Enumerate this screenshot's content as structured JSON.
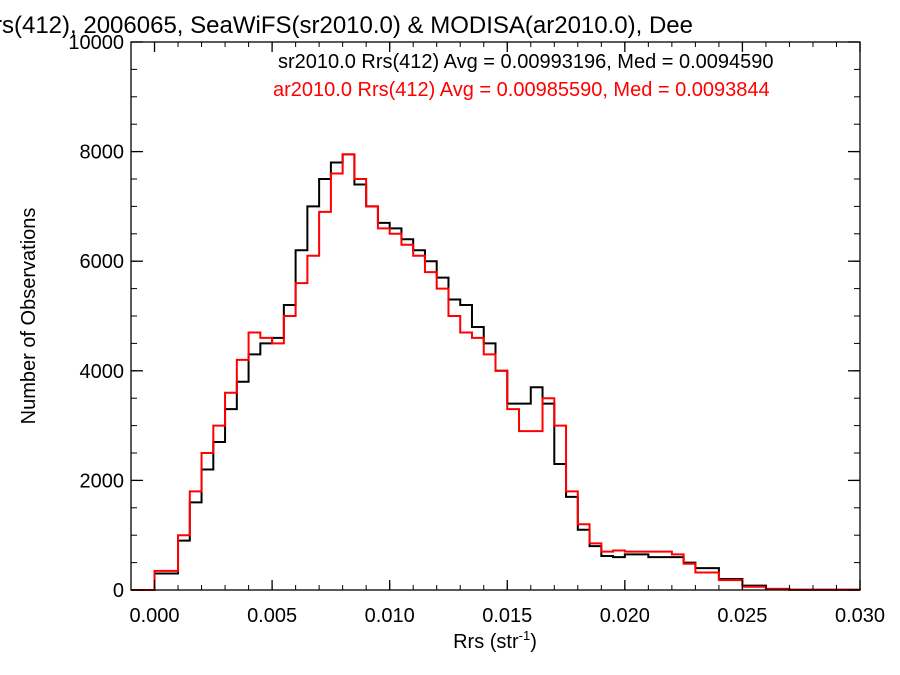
{
  "chart_data": {
    "type": "line",
    "step": true,
    "title": "rs(412), 2006065, SeaWiFS(sr2010.0) & MODISA(ar2010.0), Dee",
    "xlabel": "Rrs (str",
    "xlabel_sup": "-1",
    "xlabel_close": ")",
    "ylabel": "Number of Observations",
    "xlim": [
      -0.001,
      0.03
    ],
    "ylim": [
      0,
      10000
    ],
    "xticks": [
      0.0,
      0.005,
      0.01,
      0.015,
      0.02,
      0.025,
      0.03
    ],
    "xtick_labels": [
      "0.000",
      "0.005",
      "0.010",
      "0.015",
      "0.020",
      "0.025",
      "0.030"
    ],
    "yticks": [
      0,
      2000,
      4000,
      6000,
      8000,
      10000
    ],
    "ytick_labels": [
      "0",
      "2000",
      "4000",
      "6000",
      "8000",
      "10000"
    ],
    "legend": [
      {
        "text": "sr2010.0 Rrs(412) Avg = 0.00993196, Med = 0.0094590",
        "color": "#000000"
      },
      {
        "text": "ar2010.0 Rrs(412) Avg = 0.00985590, Med = 0.0093844",
        "color": "#ff0000"
      }
    ],
    "series": [
      {
        "color": "#000000",
        "x": [
          -0.001,
          0.0,
          0.001,
          0.0015,
          0.002,
          0.0025,
          0.003,
          0.0035,
          0.004,
          0.0045,
          0.005,
          0.0055,
          0.006,
          0.0065,
          0.007,
          0.0075,
          0.008,
          0.0085,
          0.009,
          0.0095,
          0.01,
          0.0105,
          0.011,
          0.0115,
          0.012,
          0.0125,
          0.013,
          0.0135,
          0.014,
          0.0145,
          0.015,
          0.0155,
          0.016,
          0.0165,
          0.017,
          0.0175,
          0.018,
          0.0185,
          0.019,
          0.0195,
          0.02,
          0.021,
          0.022,
          0.0225,
          0.023,
          0.024,
          0.025,
          0.026,
          0.027,
          0.03
        ],
        "y": [
          0,
          300,
          900,
          1600,
          2200,
          2700,
          3300,
          3800,
          4300,
          4500,
          4600,
          5200,
          6200,
          7000,
          7500,
          7800,
          7950,
          7400,
          7000,
          6700,
          6600,
          6400,
          6200,
          6000,
          5700,
          5300,
          5200,
          4800,
          4500,
          4000,
          3400,
          3400,
          3700,
          3400,
          2300,
          1700,
          1100,
          800,
          620,
          600,
          650,
          600,
          600,
          500,
          400,
          200,
          80,
          20,
          5,
          0
        ]
      },
      {
        "color": "#ff0000",
        "x": [
          -0.001,
          0.0,
          0.001,
          0.0015,
          0.002,
          0.0025,
          0.003,
          0.0035,
          0.004,
          0.0045,
          0.005,
          0.0055,
          0.006,
          0.0065,
          0.007,
          0.0075,
          0.008,
          0.0085,
          0.009,
          0.0095,
          0.01,
          0.0105,
          0.011,
          0.0115,
          0.012,
          0.0125,
          0.013,
          0.0135,
          0.014,
          0.0145,
          0.015,
          0.0155,
          0.016,
          0.0165,
          0.017,
          0.0175,
          0.018,
          0.0185,
          0.019,
          0.0195,
          0.02,
          0.021,
          0.022,
          0.0225,
          0.023,
          0.024,
          0.025,
          0.026,
          0.027,
          0.03
        ],
        "y": [
          0,
          350,
          1000,
          1800,
          2500,
          3000,
          3600,
          4200,
          4700,
          4600,
          4500,
          5000,
          5600,
          6100,
          6900,
          7600,
          7950,
          7500,
          7000,
          6600,
          6500,
          6300,
          6100,
          5800,
          5500,
          5000,
          4700,
          4600,
          4300,
          4000,
          3300,
          2900,
          2900,
          3500,
          3000,
          1800,
          1200,
          850,
          700,
          720,
          700,
          700,
          650,
          480,
          320,
          180,
          60,
          15,
          5,
          0
        ]
      }
    ]
  }
}
